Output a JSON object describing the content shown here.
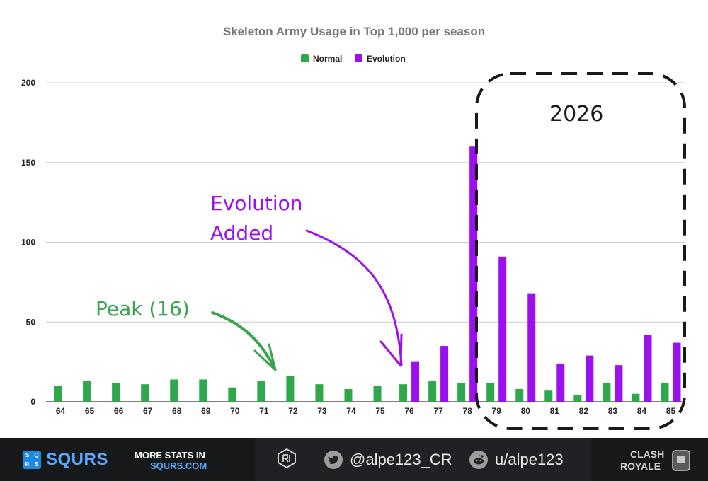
{
  "chart_data": {
    "type": "bar",
    "title": "Skeleton Army Usage in Top 1,000 per season",
    "xlabel": "",
    "ylabel": "",
    "ylim": [
      0,
      200
    ],
    "yticks": [
      "0",
      "50",
      "100",
      "150",
      "200"
    ],
    "grid": true,
    "legend_position": "top-center",
    "categories": [
      "64",
      "65",
      "66",
      "67",
      "68",
      "69",
      "70",
      "71",
      "72",
      "73",
      "74",
      "75",
      "76",
      "77",
      "78",
      "79",
      "80",
      "81",
      "82",
      "83",
      "84",
      "85"
    ],
    "series": [
      {
        "name": "Normal",
        "color": "#2ea84a",
        "values": [
          10,
          13,
          12,
          11,
          14,
          14,
          9,
          13,
          16,
          11,
          8,
          10,
          11,
          13,
          12,
          12,
          8,
          7,
          4,
          12,
          5,
          12
        ]
      },
      {
        "name": "Evolution",
        "color": "#9b10ef",
        "values": [
          null,
          null,
          null,
          null,
          null,
          null,
          null,
          null,
          null,
          null,
          null,
          null,
          25,
          35,
          160,
          91,
          68,
          24,
          29,
          23,
          42,
          37
        ]
      }
    ],
    "annotations": {
      "peak": {
        "text": "Peak (16)",
        "color": "#3aa34f"
      },
      "evolution_line1": {
        "text": "Evolution",
        "color": "#9b10ef"
      },
      "evolution_line2": {
        "text": "Added",
        "color": "#9b10ef"
      },
      "box_label": {
        "text": "2026",
        "color": "#1a1a1a"
      }
    }
  },
  "footer": {
    "brand_box": [
      "S",
      "Q",
      "R",
      "S"
    ],
    "brand_name": "SQURS",
    "more_stats_line1": "MORE STATS IN",
    "more_stats_line2": "SQURS.COM",
    "twitter": "@alpe123_CR",
    "twitter_icon": "twitter-bird-icon",
    "reddit": "u/alpe123",
    "reddit_icon": "reddit-alien-icon",
    "author_logo_icon": "author-emblem-icon",
    "game_logo_line1": "CLASH",
    "game_logo_line2": "ROYALE"
  }
}
